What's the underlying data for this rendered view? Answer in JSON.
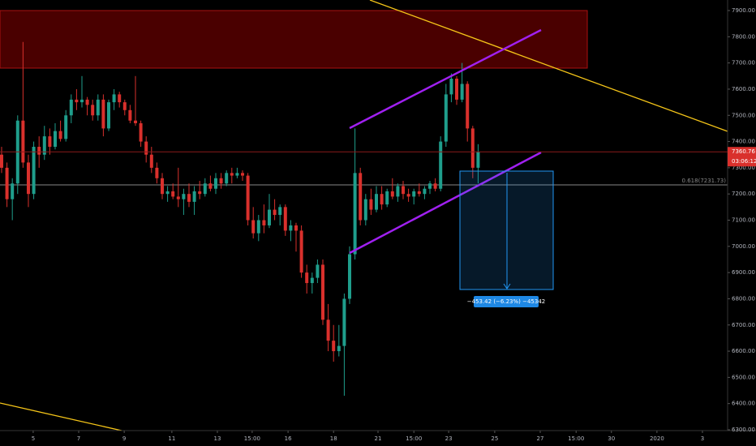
{
  "chart_data": {
    "type": "candlestick",
    "up_color": "#1f9e8c",
    "down_color": "#d9302c",
    "ylim": [
      6300,
      7900
    ],
    "yticks": [
      {
        "value": 7900,
        "label": "7900.00"
      },
      {
        "value": 7800,
        "label": "7800.00"
      },
      {
        "value": 7700,
        "label": "7700.00"
      },
      {
        "value": 7600,
        "label": "7600.00"
      },
      {
        "value": 7500,
        "label": "7500.00"
      },
      {
        "value": 7400,
        "label": "7400.00"
      },
      {
        "value": 7300,
        "label": "7300.00"
      },
      {
        "value": 7200,
        "label": "7200.00"
      },
      {
        "value": 7100,
        "label": "7100.00"
      },
      {
        "value": 7000,
        "label": "7000.00"
      },
      {
        "value": 6900,
        "label": "6900.00"
      },
      {
        "value": 6800,
        "label": "6800.00"
      },
      {
        "value": 6700,
        "label": "6700.00"
      },
      {
        "value": 6600,
        "label": "6600.00"
      },
      {
        "value": 6500,
        "label": "6500.00"
      },
      {
        "value": 6400,
        "label": "6400.00"
      },
      {
        "value": 6300,
        "label": "6300.00"
      }
    ],
    "xlim": [
      -0.3,
      135.6
    ],
    "xticks": [
      {
        "value": 5.9,
        "label": "5"
      },
      {
        "value": 14.4,
        "label": "7"
      },
      {
        "value": 22.9,
        "label": "9"
      },
      {
        "value": 31.8,
        "label": "11"
      },
      {
        "value": 40.3,
        "label": "13"
      },
      {
        "value": 46.8,
        "label": "15:00"
      },
      {
        "value": 53.5,
        "label": "16"
      },
      {
        "value": 62,
        "label": "18"
      },
      {
        "value": 70.3,
        "label": "21"
      },
      {
        "value": 77,
        "label": "15:00"
      },
      {
        "value": 83.5,
        "label": "23"
      },
      {
        "value": 92.1,
        "label": "25"
      },
      {
        "value": 100.6,
        "label": "27"
      },
      {
        "value": 107.3,
        "label": "15:00"
      },
      {
        "value": 113.9,
        "label": "30"
      },
      {
        "value": 122.4,
        "label": "2020"
      },
      {
        "value": 130.9,
        "label": "3"
      }
    ],
    "last_price": 7360.76,
    "countdown": "03:06:12",
    "fib_label": "0.618(7231.73)",
    "measure_label": "−453.42 (−6.23%) −45342",
    "ohlc": [
      [
        7350,
        7380,
        7280,
        7300
      ],
      [
        7300,
        7320,
        7150,
        7180
      ],
      [
        7180,
        7260,
        7100,
        7240
      ],
      [
        7240,
        7500,
        7200,
        7480
      ],
      [
        7480,
        7780,
        7300,
        7320
      ],
      [
        7320,
        7350,
        7150,
        7200
      ],
      [
        7200,
        7400,
        7180,
        7380
      ],
      [
        7380,
        7420,
        7300,
        7350
      ],
      [
        7350,
        7460,
        7330,
        7420
      ],
      [
        7420,
        7450,
        7350,
        7380
      ],
      [
        7380,
        7470,
        7370,
        7440
      ],
      [
        7440,
        7480,
        7400,
        7410
      ],
      [
        7410,
        7520,
        7400,
        7500
      ],
      [
        7500,
        7580,
        7470,
        7560
      ],
      [
        7560,
        7600,
        7520,
        7550
      ],
      [
        7550,
        7650,
        7530,
        7560
      ],
      [
        7560,
        7570,
        7500,
        7540
      ],
      [
        7540,
        7560,
        7480,
        7500
      ],
      [
        7500,
        7580,
        7480,
        7560
      ],
      [
        7560,
        7580,
        7420,
        7450
      ],
      [
        7450,
        7560,
        7440,
        7550
      ],
      [
        7550,
        7600,
        7520,
        7580
      ],
      [
        7580,
        7590,
        7530,
        7550
      ],
      [
        7550,
        7560,
        7500,
        7520
      ],
      [
        7520,
        7540,
        7470,
        7480
      ],
      [
        7480,
        7650,
        7460,
        7470
      ],
      [
        7470,
        7480,
        7380,
        7400
      ],
      [
        7400,
        7420,
        7320,
        7350
      ],
      [
        7350,
        7380,
        7280,
        7300
      ],
      [
        7300,
        7320,
        7240,
        7260
      ],
      [
        7260,
        7280,
        7180,
        7200
      ],
      [
        7200,
        7230,
        7170,
        7210
      ],
      [
        7210,
        7240,
        7180,
        7190
      ],
      [
        7190,
        7300,
        7150,
        7180
      ],
      [
        7180,
        7220,
        7120,
        7200
      ],
      [
        7200,
        7240,
        7150,
        7170
      ],
      [
        7170,
        7230,
        7120,
        7210
      ],
      [
        7210,
        7250,
        7180,
        7200
      ],
      [
        7200,
        7260,
        7190,
        7240
      ],
      [
        7240,
        7270,
        7210,
        7220
      ],
      [
        7220,
        7280,
        7200,
        7260
      ],
      [
        7260,
        7280,
        7220,
        7240
      ],
      [
        7240,
        7290,
        7230,
        7280
      ],
      [
        7280,
        7300,
        7240,
        7270
      ],
      [
        7270,
        7300,
        7260,
        7280
      ],
      [
        7280,
        7290,
        7250,
        7270
      ],
      [
        7270,
        7280,
        7080,
        7100
      ],
      [
        7100,
        7150,
        7030,
        7050
      ],
      [
        7050,
        7120,
        7020,
        7100
      ],
      [
        7100,
        7160,
        7050,
        7080
      ],
      [
        7080,
        7200,
        7070,
        7140
      ],
      [
        7140,
        7180,
        7100,
        7120
      ],
      [
        7120,
        7160,
        7080,
        7150
      ],
      [
        7150,
        7160,
        7040,
        7060
      ],
      [
        7060,
        7100,
        7020,
        7080
      ],
      [
        7080,
        7090,
        6980,
        7060
      ],
      [
        7060,
        7080,
        6880,
        6900
      ],
      [
        6900,
        6930,
        6820,
        6860
      ],
      [
        6860,
        6900,
        6820,
        6880
      ],
      [
        6880,
        6950,
        6860,
        6930
      ],
      [
        6930,
        6950,
        6700,
        6720
      ],
      [
        6720,
        6780,
        6600,
        6640
      ],
      [
        6640,
        6700,
        6560,
        6600
      ],
      [
        6600,
        6700,
        6580,
        6620
      ],
      [
        6620,
        6820,
        6430,
        6800
      ],
      [
        6800,
        7000,
        6780,
        6970
      ],
      [
        6970,
        7450,
        6950,
        7280
      ],
      [
        7280,
        7300,
        7080,
        7100
      ],
      [
        7100,
        7200,
        7080,
        7180
      ],
      [
        7180,
        7220,
        7120,
        7140
      ],
      [
        7140,
        7230,
        7130,
        7200
      ],
      [
        7200,
        7230,
        7140,
        7160
      ],
      [
        7160,
        7220,
        7150,
        7210
      ],
      [
        7210,
        7260,
        7180,
        7190
      ],
      [
        7190,
        7240,
        7170,
        7230
      ],
      [
        7230,
        7250,
        7180,
        7200
      ],
      [
        7200,
        7220,
        7170,
        7190
      ],
      [
        7190,
        7220,
        7160,
        7210
      ],
      [
        7210,
        7240,
        7190,
        7200
      ],
      [
        7200,
        7230,
        7180,
        7220
      ],
      [
        7220,
        7250,
        7200,
        7240
      ],
      [
        7240,
        7260,
        7210,
        7220
      ],
      [
        7220,
        7420,
        7210,
        7400
      ],
      [
        7400,
        7620,
        7380,
        7580
      ],
      [
        7580,
        7660,
        7550,
        7640
      ],
      [
        7640,
        7650,
        7540,
        7560
      ],
      [
        7560,
        7700,
        7550,
        7620
      ],
      [
        7620,
        7630,
        7400,
        7450
      ],
      [
        7450,
        7460,
        7260,
        7300
      ],
      [
        7300,
        7390,
        7240,
        7360
      ]
    ]
  }
}
